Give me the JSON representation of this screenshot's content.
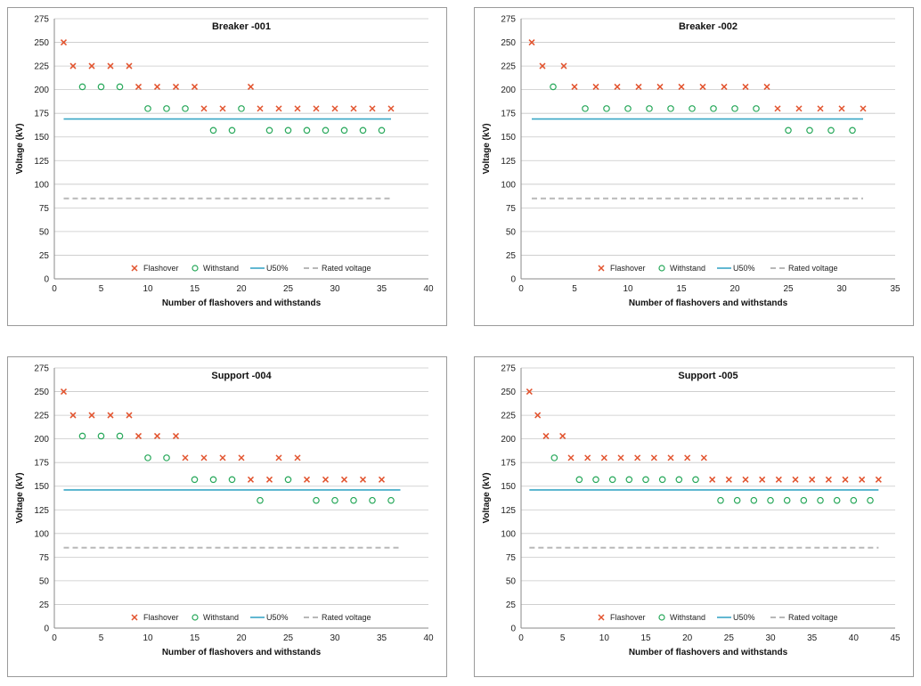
{
  "chart_data": [
    {
      "type": "scatter",
      "title": "Breaker -001",
      "xlabel": "Number of flashovers and withstands",
      "ylabel": "Voltage (kV)",
      "xlim": [
        0,
        40
      ],
      "ylim": [
        0,
        275
      ],
      "xticks": [
        0,
        5,
        10,
        15,
        20,
        25,
        30,
        35,
        40
      ],
      "yticks": [
        0,
        25,
        50,
        75,
        100,
        125,
        150,
        175,
        200,
        225,
        250,
        275
      ],
      "legend_labels": [
        "Flashover",
        "Withstand",
        "U50%",
        "Rated voltage"
      ],
      "flashover": {
        "x": [
          1,
          2,
          4,
          6,
          8,
          9,
          11,
          13,
          15,
          16,
          18,
          21,
          22,
          24,
          26,
          28,
          30,
          32,
          34,
          36
        ],
        "y": [
          250,
          225,
          225,
          225,
          225,
          203,
          203,
          203,
          203,
          180,
          180,
          203,
          180,
          180,
          180,
          180,
          180,
          180,
          180,
          180
        ]
      },
      "withstand": {
        "x": [
          3,
          5,
          7,
          10,
          12,
          14,
          17,
          19,
          20,
          23,
          25,
          27,
          29,
          31,
          33,
          35
        ],
        "y": [
          203,
          203,
          203,
          180,
          180,
          180,
          157,
          157,
          180,
          157,
          157,
          157,
          157,
          157,
          157,
          157
        ]
      },
      "u50": {
        "value": 169,
        "x_range": [
          1,
          36
        ]
      },
      "rated_voltage": {
        "value": 85,
        "x_range": [
          1,
          36
        ]
      }
    },
    {
      "type": "scatter",
      "title": "Breaker -002",
      "xlabel": "Number of flashovers and withstands",
      "ylabel": "Voltage (kV)",
      "xlim": [
        0,
        35
      ],
      "ylim": [
        0,
        275
      ],
      "xticks": [
        0,
        5,
        10,
        15,
        20,
        25,
        30,
        35
      ],
      "yticks": [
        0,
        25,
        50,
        75,
        100,
        125,
        150,
        175,
        200,
        225,
        250,
        275
      ],
      "legend_labels": [
        "Flashover",
        "Withstand",
        "U50%",
        "Rated voltage"
      ],
      "flashover": {
        "x": [
          1,
          2,
          4,
          5,
          7,
          9,
          11,
          13,
          15,
          17,
          19,
          21,
          23,
          24,
          26,
          28,
          30,
          32
        ],
        "y": [
          250,
          225,
          225,
          203,
          203,
          203,
          203,
          203,
          203,
          203,
          203,
          203,
          203,
          180,
          180,
          180,
          180,
          180
        ]
      },
      "withstand": {
        "x": [
          3,
          6,
          8,
          10,
          12,
          14,
          16,
          18,
          20,
          22,
          25,
          27,
          29,
          31
        ],
        "y": [
          203,
          180,
          180,
          180,
          180,
          180,
          180,
          180,
          180,
          180,
          157,
          157,
          157,
          157
        ]
      },
      "u50": {
        "value": 169,
        "x_range": [
          1,
          32
        ]
      },
      "rated_voltage": {
        "value": 85,
        "x_range": [
          1,
          32
        ]
      }
    },
    {
      "type": "scatter",
      "title": "Support -004",
      "xlabel": "Number of flashovers and withstands",
      "ylabel": "Voltage (kV)",
      "xlim": [
        0,
        40
      ],
      "ylim": [
        0,
        275
      ],
      "xticks": [
        0,
        5,
        10,
        15,
        20,
        25,
        30,
        35,
        40
      ],
      "yticks": [
        0,
        25,
        50,
        75,
        100,
        125,
        150,
        175,
        200,
        225,
        250,
        275
      ],
      "legend_labels": [
        "Flashover",
        "Withstand",
        "U50%",
        "Rated voltage"
      ],
      "flashover": {
        "x": [
          1,
          2,
          4,
          6,
          8,
          9,
          11,
          13,
          14,
          16,
          18,
          20,
          21,
          23,
          24,
          26,
          27,
          29,
          31,
          33,
          35
        ],
        "y": [
          250,
          225,
          225,
          225,
          225,
          203,
          203,
          203,
          180,
          180,
          180,
          180,
          157,
          157,
          180,
          180,
          157,
          157,
          157,
          157,
          157
        ]
      },
      "withstand": {
        "x": [
          3,
          5,
          7,
          10,
          12,
          15,
          17,
          19,
          22,
          25,
          28,
          30,
          32,
          34,
          36
        ],
        "y": [
          203,
          203,
          203,
          180,
          180,
          157,
          157,
          157,
          135,
          157,
          135,
          135,
          135,
          135,
          135
        ]
      },
      "u50": {
        "value": 146,
        "x_range": [
          1,
          37
        ]
      },
      "rated_voltage": {
        "value": 85,
        "x_range": [
          1,
          37
        ]
      }
    },
    {
      "type": "scatter",
      "title": "Support -005",
      "xlabel": "Number of flashovers and withstands",
      "ylabel": "Voltage (kV)",
      "xlim": [
        0,
        45
      ],
      "ylim": [
        0,
        275
      ],
      "xticks": [
        0,
        5,
        10,
        15,
        20,
        25,
        30,
        35,
        40,
        45
      ],
      "yticks": [
        0,
        25,
        50,
        75,
        100,
        125,
        150,
        175,
        200,
        225,
        250,
        275
      ],
      "legend_labels": [
        "Flashover",
        "Withstand",
        "U50%",
        "Rated voltage"
      ],
      "flashover": {
        "x": [
          1,
          2,
          3,
          5,
          6,
          8,
          10,
          12,
          14,
          16,
          18,
          20,
          22,
          23,
          25,
          27,
          29,
          31,
          33,
          35,
          37,
          39,
          41,
          43
        ],
        "y": [
          250,
          225,
          203,
          203,
          180,
          180,
          180,
          180,
          180,
          180,
          180,
          180,
          180,
          157,
          157,
          157,
          157,
          157,
          157,
          157,
          157,
          157,
          157,
          157
        ]
      },
      "withstand": {
        "x": [
          4,
          7,
          9,
          11,
          13,
          15,
          17,
          19,
          21,
          24,
          26,
          28,
          30,
          32,
          34,
          36,
          38,
          40,
          42
        ],
        "y": [
          180,
          157,
          157,
          157,
          157,
          157,
          157,
          157,
          157,
          135,
          135,
          135,
          135,
          135,
          135,
          135,
          135,
          135,
          135
        ]
      },
      "u50": {
        "value": 146,
        "x_range": [
          1,
          43
        ]
      },
      "rated_voltage": {
        "value": 85,
        "x_range": [
          1,
          43
        ]
      }
    }
  ]
}
